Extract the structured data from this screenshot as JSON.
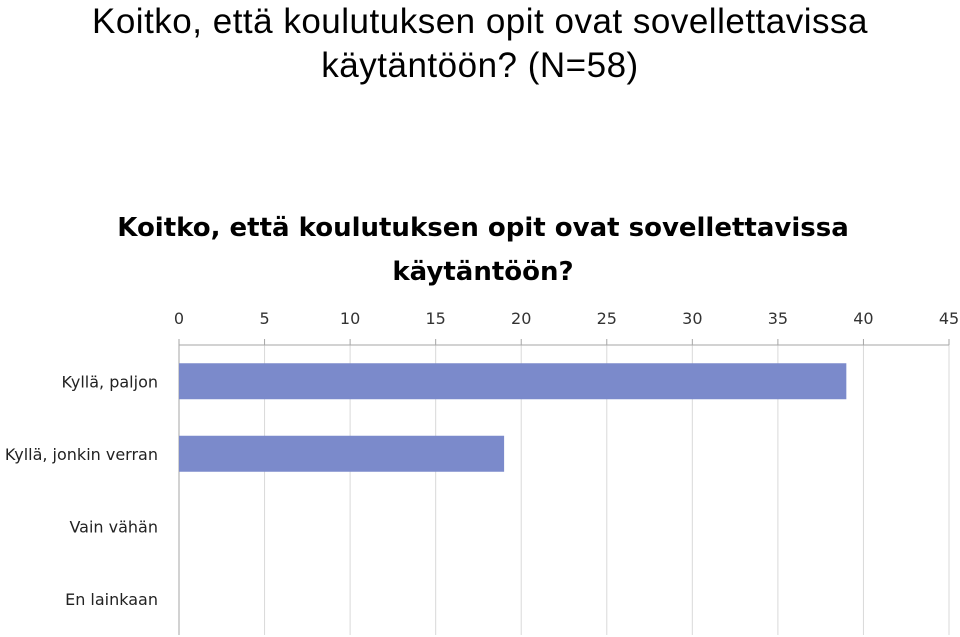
{
  "slide": {
    "title_line1": "Koitko, että koulutuksen opit ovat sovellettavissa",
    "title_line2": "käytäntöön? (N=58)"
  },
  "chart_data": {
    "type": "bar",
    "orientation": "horizontal",
    "title_line1": "Koitko, että koulutuksen opit ovat sovellettavissa",
    "title_line2": "käytäntöön?",
    "categories": [
      "Kyllä, paljon",
      "Kyllä, jonkin verran",
      "Vain vähän",
      "En lainkaan"
    ],
    "values": [
      39,
      19,
      0,
      0
    ],
    "xlim": [
      0,
      45
    ],
    "xticks": [
      0,
      5,
      10,
      15,
      20,
      25,
      30,
      35,
      40,
      45
    ],
    "x_axis_position": "top",
    "grid": true,
    "bar_color": "#7b8acb"
  }
}
